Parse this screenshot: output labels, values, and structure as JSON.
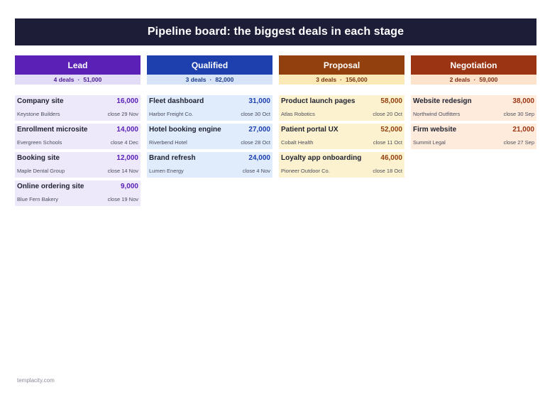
{
  "title": "Pipeline board: the biggest deals in each stage",
  "footer": "templacity.com",
  "colors": {
    "title_bg": "#1e1d38",
    "lead": "#5b21b6",
    "qualified": "#1e40af",
    "proposal": "#92400e",
    "negotiation": "#9a3412"
  },
  "separator": "·",
  "columns": [
    {
      "stage": "Lead",
      "deal_count": "4 deals",
      "total": "51,000",
      "cards": [
        {
          "name": "Company site",
          "value": "16,000",
          "company": "Keystone Builders",
          "close": "close 29 Nov"
        },
        {
          "name": "Enrollment microsite",
          "value": "14,000",
          "company": "Evergreen Schools",
          "close": "close 4 Dec"
        },
        {
          "name": "Booking site",
          "value": "12,000",
          "company": "Maple Dental Group",
          "close": "close 14 Nov"
        },
        {
          "name": "Online ordering site",
          "value": "9,000",
          "company": "Blue Fern Bakery",
          "close": "close 19 Nov"
        }
      ]
    },
    {
      "stage": "Qualified",
      "deal_count": "3 deals",
      "total": "82,000",
      "cards": [
        {
          "name": "Fleet dashboard",
          "value": "31,000",
          "company": "Harbor Freight Co.",
          "close": "close 30 Oct"
        },
        {
          "name": "Hotel booking engine",
          "value": "27,000",
          "company": "Riverbend Hotel",
          "close": "close 28 Oct"
        },
        {
          "name": "Brand refresh",
          "value": "24,000",
          "company": "Lumen Energy",
          "close": "close 4 Nov"
        }
      ]
    },
    {
      "stage": "Proposal",
      "deal_count": "3 deals",
      "total": "156,000",
      "cards": [
        {
          "name": "Product launch pages",
          "value": "58,000",
          "company": "Atlas Robotics",
          "close": "close 20 Oct"
        },
        {
          "name": "Patient portal UX",
          "value": "52,000",
          "company": "Cobalt Health",
          "close": "close 11 Oct"
        },
        {
          "name": "Loyalty app onboarding",
          "value": "46,000",
          "company": "Pioneer Outdoor Co.",
          "close": "close 18 Oct"
        }
      ]
    },
    {
      "stage": "Negotiation",
      "deal_count": "2 deals",
      "total": "59,000",
      "cards": [
        {
          "name": "Website redesign",
          "value": "38,000",
          "company": "Northwind Outfitters",
          "close": "close 30 Sep"
        },
        {
          "name": "Firm website",
          "value": "21,000",
          "company": "Summit Legal",
          "close": "close 27 Sep"
        }
      ]
    }
  ]
}
